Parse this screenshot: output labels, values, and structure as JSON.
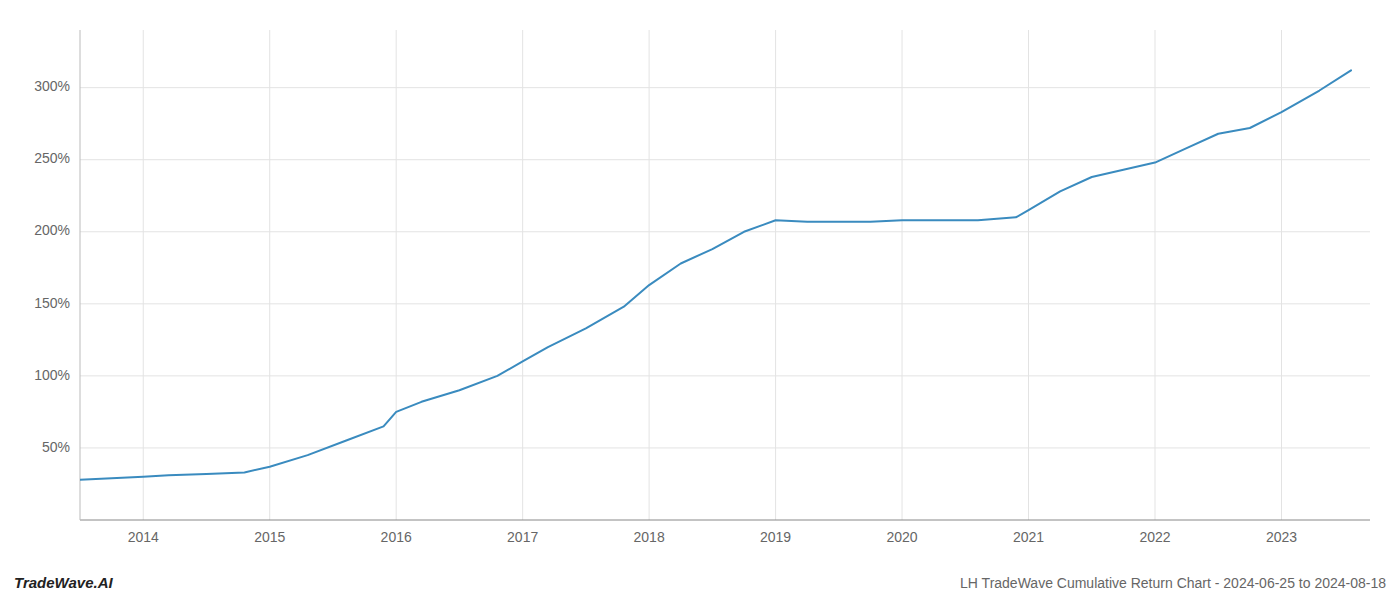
{
  "chart_data": {
    "type": "line",
    "title": "LH TradeWave Cumulative Return Chart - 2024-06-25 to 2024-08-18",
    "annotations": [
      "TradeWave.AI"
    ],
    "x": [
      2013.5,
      2014.0,
      2014.2,
      2014.5,
      2014.8,
      2015.0,
      2015.3,
      2015.6,
      2015.9,
      2016.0,
      2016.2,
      2016.5,
      2016.8,
      2017.0,
      2017.2,
      2017.5,
      2017.8,
      2018.0,
      2018.25,
      2018.5,
      2018.75,
      2019.0,
      2019.25,
      2019.5,
      2019.75,
      2020.0,
      2020.3,
      2020.6,
      2020.9,
      2021.0,
      2021.25,
      2021.5,
      2021.75,
      2022.0,
      2022.25,
      2022.5,
      2022.75,
      2023.0,
      2023.3,
      2023.55
    ],
    "values": [
      28,
      30,
      31,
      32,
      33,
      37,
      45,
      55,
      65,
      75,
      82,
      90,
      100,
      110,
      120,
      133,
      148,
      163,
      178,
      188,
      200,
      208,
      207,
      207,
      207,
      208,
      208,
      208,
      210,
      215,
      228,
      238,
      243,
      248,
      258,
      268,
      272,
      283,
      298,
      312
    ],
    "color": "#3a8bbf",
    "xlim": [
      2013.5,
      2023.7
    ],
    "ylim": [
      0,
      340
    ],
    "xticks": [
      2014,
      2015,
      2016,
      2017,
      2018,
      2019,
      2020,
      2021,
      2022,
      2023
    ],
    "yticks": [
      {
        "value": 50,
        "label": "50%"
      },
      {
        "value": 100,
        "label": "100%"
      },
      {
        "value": 150,
        "label": "150%"
      },
      {
        "value": 200,
        "label": "200%"
      },
      {
        "value": 250,
        "label": "250%"
      },
      {
        "value": 300,
        "label": "300%"
      }
    ],
    "grid": true
  }
}
